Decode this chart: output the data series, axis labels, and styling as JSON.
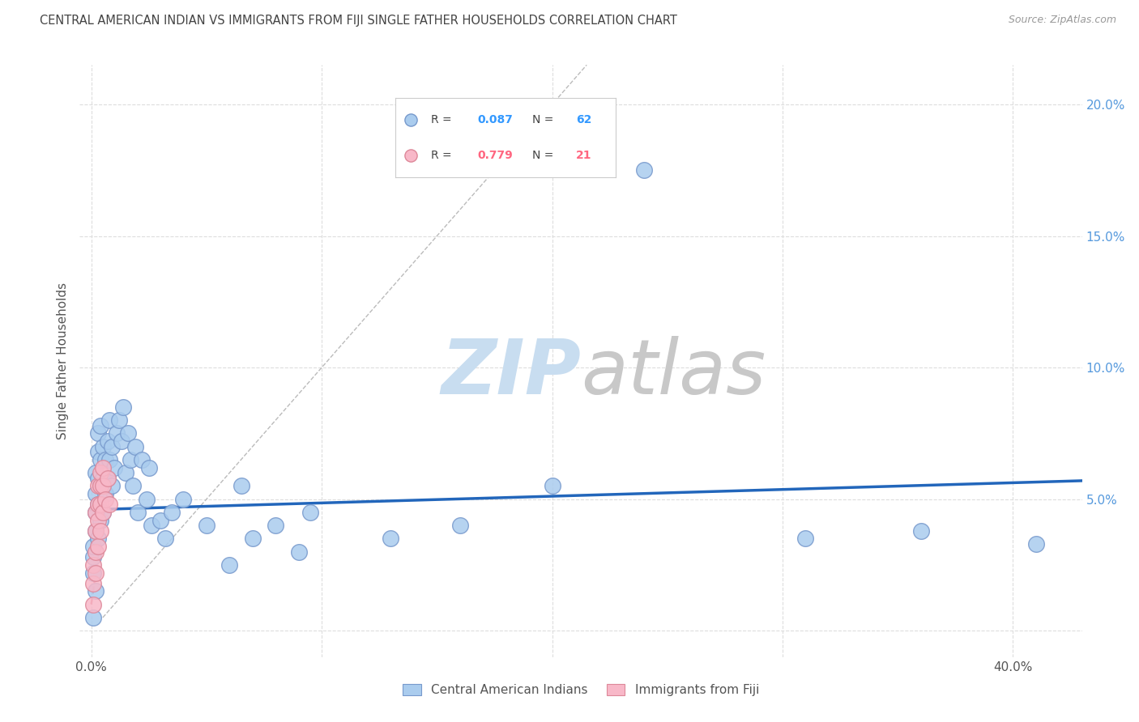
{
  "title": "CENTRAL AMERICAN INDIAN VS IMMIGRANTS FROM FIJI SINGLE FATHER HOUSEHOLDS CORRELATION CHART",
  "source": "Source: ZipAtlas.com",
  "ylabel": "Single Father Households",
  "y_ticks": [
    0.0,
    0.05,
    0.1,
    0.15,
    0.2
  ],
  "y_tick_labels": [
    "",
    "5.0%",
    "10.0%",
    "15.0%",
    "20.0%"
  ],
  "x_ticks": [
    0.0,
    0.1,
    0.2,
    0.3,
    0.4
  ],
  "xlim": [
    -0.005,
    0.43
  ],
  "ylim": [
    -0.01,
    0.215
  ],
  "blue_color": "#aaccee",
  "blue_edge_color": "#7799cc",
  "pink_color": "#f8b8c8",
  "pink_edge_color": "#dd8899",
  "blue_line_color": "#2266bb",
  "pink_line_color": "#dd6677",
  "ref_line_color": "#bbbbbb",
  "grid_color": "#dddddd",
  "legend_r_color_blue": "#3399ff",
  "legend_r_color_pink": "#ff6680",
  "watermark_color": "#ddeeff",
  "title_color": "#444444",
  "source_color": "#999999",
  "blue_scatter_x": [
    0.001,
    0.001,
    0.001,
    0.001,
    0.002,
    0.002,
    0.002,
    0.002,
    0.002,
    0.003,
    0.003,
    0.003,
    0.003,
    0.003,
    0.004,
    0.004,
    0.004,
    0.004,
    0.005,
    0.005,
    0.005,
    0.006,
    0.006,
    0.007,
    0.007,
    0.008,
    0.008,
    0.009,
    0.009,
    0.01,
    0.011,
    0.012,
    0.013,
    0.014,
    0.015,
    0.016,
    0.017,
    0.018,
    0.019,
    0.02,
    0.022,
    0.024,
    0.025,
    0.026,
    0.03,
    0.032,
    0.035,
    0.04,
    0.05,
    0.06,
    0.065,
    0.07,
    0.08,
    0.09,
    0.095,
    0.13,
    0.16,
    0.2,
    0.24,
    0.31,
    0.36,
    0.41
  ],
  "blue_scatter_y": [
    0.005,
    0.022,
    0.028,
    0.032,
    0.015,
    0.038,
    0.045,
    0.052,
    0.06,
    0.035,
    0.048,
    0.058,
    0.068,
    0.075,
    0.042,
    0.055,
    0.065,
    0.078,
    0.045,
    0.058,
    0.07,
    0.052,
    0.065,
    0.058,
    0.072,
    0.065,
    0.08,
    0.055,
    0.07,
    0.062,
    0.075,
    0.08,
    0.072,
    0.085,
    0.06,
    0.075,
    0.065,
    0.055,
    0.07,
    0.045,
    0.065,
    0.05,
    0.062,
    0.04,
    0.042,
    0.035,
    0.045,
    0.05,
    0.04,
    0.025,
    0.055,
    0.035,
    0.04,
    0.03,
    0.045,
    0.035,
    0.04,
    0.055,
    0.175,
    0.035,
    0.038,
    0.033
  ],
  "pink_scatter_x": [
    0.001,
    0.001,
    0.001,
    0.002,
    0.002,
    0.002,
    0.002,
    0.003,
    0.003,
    0.003,
    0.003,
    0.004,
    0.004,
    0.004,
    0.004,
    0.005,
    0.005,
    0.005,
    0.006,
    0.007,
    0.008
  ],
  "pink_scatter_y": [
    0.01,
    0.018,
    0.025,
    0.022,
    0.03,
    0.038,
    0.045,
    0.032,
    0.042,
    0.048,
    0.055,
    0.038,
    0.048,
    0.055,
    0.06,
    0.045,
    0.055,
    0.062,
    0.05,
    0.058,
    0.048
  ],
  "blue_line_x0": 0.0,
  "blue_line_x1": 0.43,
  "blue_line_y0": 0.046,
  "blue_line_y1": 0.057,
  "pink_line_x0": 0.0,
  "pink_line_x1": 0.009,
  "pink_line_y0": 0.01,
  "pink_line_y1": 0.065,
  "ref_line_x0": 0.005,
  "ref_line_x1": 0.215,
  "ref_line_y0": 0.005,
  "ref_line_y1": 0.215
}
